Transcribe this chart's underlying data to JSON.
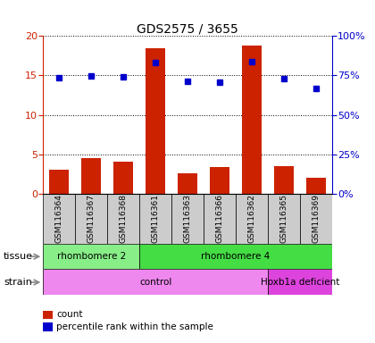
{
  "title": "GDS2575 / 3655",
  "samples": [
    "GSM116364",
    "GSM116367",
    "GSM116368",
    "GSM116361",
    "GSM116363",
    "GSM116366",
    "GSM116362",
    "GSM116365",
    "GSM116369"
  ],
  "counts": [
    3.0,
    4.5,
    4.1,
    18.5,
    2.6,
    3.4,
    18.8,
    3.5,
    2.0
  ],
  "percentile_ranks": [
    73.5,
    74.5,
    74.0,
    83.0,
    71.5,
    71.0,
    83.5,
    73.0,
    66.5
  ],
  "ylim_left": [
    0,
    20
  ],
  "ylim_right": [
    0,
    100
  ],
  "yticks_left": [
    0,
    5,
    10,
    15,
    20
  ],
  "yticks_right": [
    0,
    25,
    50,
    75,
    100
  ],
  "ytick_labels_right": [
    "0%",
    "25%",
    "50%",
    "75%",
    "100%"
  ],
  "bar_color": "#cc2200",
  "dot_color": "#0000cc",
  "tissue_groups": [
    {
      "label": "rhombomere 2",
      "indices": [
        0,
        1,
        2
      ],
      "color": "#88ee88"
    },
    {
      "label": "rhombomere 4",
      "indices": [
        3,
        4,
        5,
        6,
        7,
        8
      ],
      "color": "#44dd44"
    }
  ],
  "strain_groups": [
    {
      "label": "control",
      "indices": [
        0,
        1,
        2,
        3,
        4,
        5,
        6
      ],
      "color": "#ee88ee"
    },
    {
      "label": "Hoxb1a deficient",
      "indices": [
        7,
        8
      ],
      "color": "#dd44dd"
    }
  ],
  "left_axis_color": "#cc2200",
  "right_axis_color": "#0000cc",
  "background_gray": "#cccccc",
  "background_plot": "#ffffff"
}
